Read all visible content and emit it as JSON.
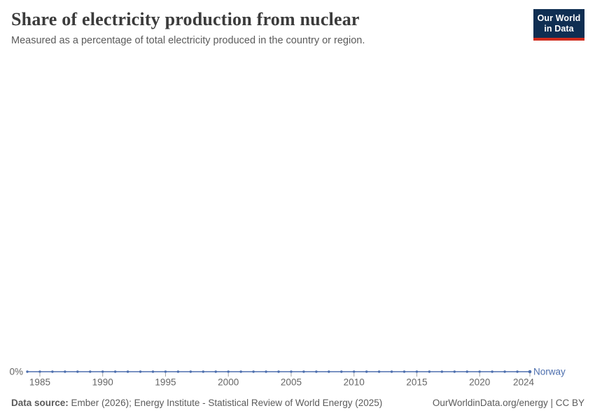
{
  "header": {
    "title": "Share of electricity production from nuclear",
    "subtitle": "Measured as a percentage of total electricity produced in the country or region."
  },
  "logo": {
    "line1": "Our World",
    "line2": "in Data",
    "bg_color": "#0f2e52",
    "accent_color": "#cf2a1c"
  },
  "chart_data": {
    "type": "line",
    "title": "Share of electricity production from nuclear",
    "xlabel": "",
    "ylabel": "",
    "unit": "%",
    "grid": false,
    "legend_position": "end-of-line",
    "xlim": [
      1984,
      2024
    ],
    "ylim": [
      0,
      0
    ],
    "x_ticks": [
      1985,
      1990,
      1995,
      2000,
      2005,
      2010,
      2015,
      2020,
      2024
    ],
    "y_tick_label": "0%",
    "x": [
      1984,
      1985,
      1986,
      1987,
      1988,
      1989,
      1990,
      1991,
      1992,
      1993,
      1994,
      1995,
      1996,
      1997,
      1998,
      1999,
      2000,
      2001,
      2002,
      2003,
      2004,
      2005,
      2006,
      2007,
      2008,
      2009,
      2010,
      2011,
      2012,
      2013,
      2014,
      2015,
      2016,
      2017,
      2018,
      2019,
      2020,
      2021,
      2022,
      2023,
      2024
    ],
    "series": [
      {
        "name": "Norway",
        "color": "#4d6fae",
        "values": [
          0,
          0,
          0,
          0,
          0,
          0,
          0,
          0,
          0,
          0,
          0,
          0,
          0,
          0,
          0,
          0,
          0,
          0,
          0,
          0,
          0,
          0,
          0,
          0,
          0,
          0,
          0,
          0,
          0,
          0,
          0,
          0,
          0,
          0,
          0,
          0,
          0,
          0,
          0,
          0,
          0
        ]
      }
    ],
    "axis_text_color": "#666666",
    "tick_mark_color": "#a3a3a3"
  },
  "footer": {
    "source_label": "Data source:",
    "source_text": " Ember (2026); Energy Institute - Statistical Review of World Energy (2025)",
    "right_text": "OurWorldinData.org/energy | CC BY"
  }
}
